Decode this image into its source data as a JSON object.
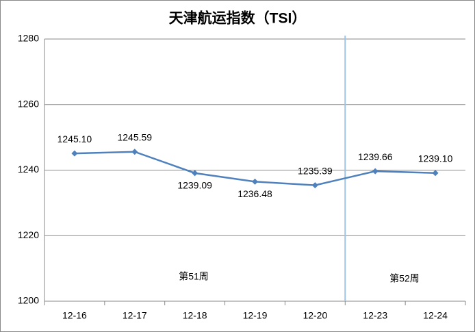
{
  "chart_data": {
    "type": "line",
    "title": "天津航运指数（TSI）",
    "categories": [
      "12-16",
      "12-17",
      "12-18",
      "12-19",
      "12-20",
      "12-23",
      "12-24"
    ],
    "series": [
      {
        "name": "TSI",
        "color": "#4f81bd",
        "values": [
          1245.1,
          1245.59,
          1239.09,
          1236.48,
          1235.39,
          1239.66,
          1239.1
        ],
        "value_labels": [
          "1245.10",
          "1245.59",
          "1239.09",
          "1236.48",
          "1235.39",
          "1239.66",
          "1239.10"
        ]
      }
    ],
    "ylim": [
      1200,
      1280
    ],
    "yticks": [
      1200,
      1220,
      1240,
      1260,
      1280
    ],
    "grid": true,
    "annotations": [
      "第51周",
      "第52周"
    ]
  }
}
